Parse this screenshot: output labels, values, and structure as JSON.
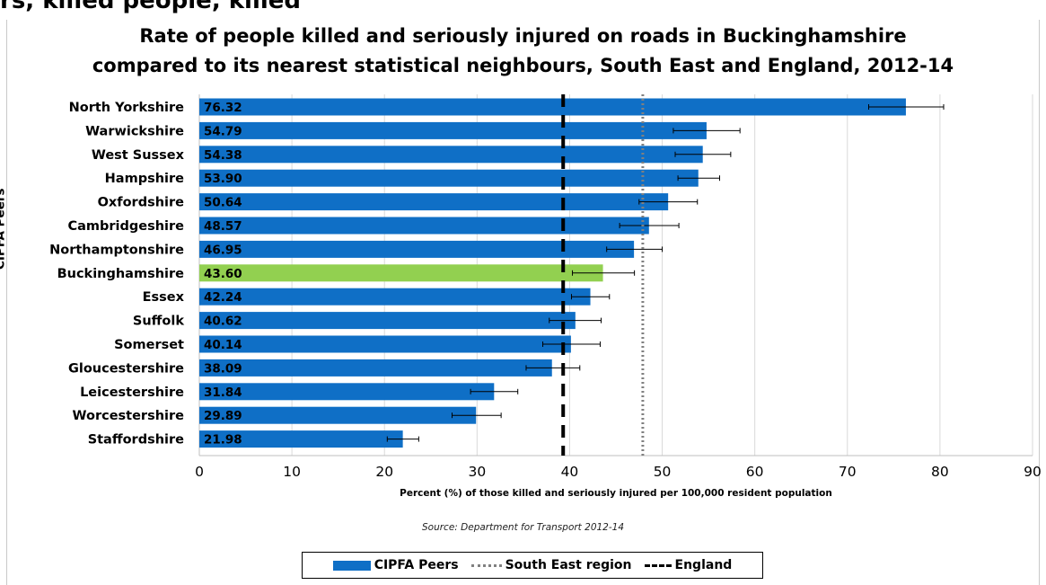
{
  "header": {
    "top_clip": "rs, killed   people, killed",
    "title_line1": "Rate of people killed and seriously injured on roads in Buckinghamshire",
    "title_line2": "compared to its nearest statistical neighbours, South East and England, 2012-14"
  },
  "source": "Source: Department for Transport 2012-14",
  "colors": {
    "bar": "#0f6fc6",
    "highlight": "#92d050",
    "south_east_line": "#808080",
    "england_line": "#000000"
  },
  "legend": {
    "peers": "CIPFA Peers",
    "south_east": "South East region",
    "england": "England"
  },
  "chart_data": {
    "type": "bar",
    "orientation": "horizontal",
    "title": "Rate of people killed and seriously injured on roads in Buckinghamshire compared to its nearest statistical neighbours, South East and England, 2012-14",
    "xlabel": "Percent (%) of those killed and seriously injured per 100,000 resident population",
    "ylabel": "CIPFA Peers",
    "xlim": [
      0,
      90
    ],
    "xticks": [
      0,
      10,
      20,
      30,
      40,
      50,
      60,
      70,
      80,
      90
    ],
    "grid": "vertical",
    "legend_position": "bottom",
    "highlight": "Buckinghamshire",
    "categories": [
      "North Yorkshire",
      "Warwickshire",
      "West Sussex",
      "Hampshire",
      "Oxfordshire",
      "Cambridgeshire",
      "Northamptonshire",
      "Buckinghamshire",
      "Essex",
      "Suffolk",
      "Somerset",
      "Gloucestershire",
      "Leicestershire",
      "Worcestershire",
      "Staffordshire"
    ],
    "values": [
      76.32,
      54.79,
      54.38,
      53.9,
      50.64,
      48.57,
      46.95,
      43.6,
      42.24,
      40.62,
      40.14,
      38.09,
      31.84,
      29.89,
      21.98
    ],
    "value_labels": [
      "76.32",
      "54.79",
      "54.38",
      "53.90",
      "50.64",
      "48.57",
      "46.95",
      "43.60",
      "42.24",
      "40.62",
      "40.14",
      "38.09",
      "31.84",
      "29.89",
      "21.98"
    ],
    "error_low": [
      72.3,
      51.2,
      51.4,
      51.7,
      47.5,
      45.4,
      44.0,
      40.3,
      40.2,
      37.8,
      37.1,
      35.3,
      29.3,
      27.3,
      20.3
    ],
    "error_high": [
      80.4,
      58.4,
      57.4,
      56.2,
      53.8,
      51.8,
      50.0,
      47.0,
      44.3,
      43.4,
      43.3,
      41.1,
      34.4,
      32.6,
      23.7
    ],
    "reference_lines": [
      {
        "name": "South East region",
        "value": 47.9,
        "style": "dotted"
      },
      {
        "name": "England",
        "value": 39.3,
        "style": "dashed"
      }
    ]
  }
}
